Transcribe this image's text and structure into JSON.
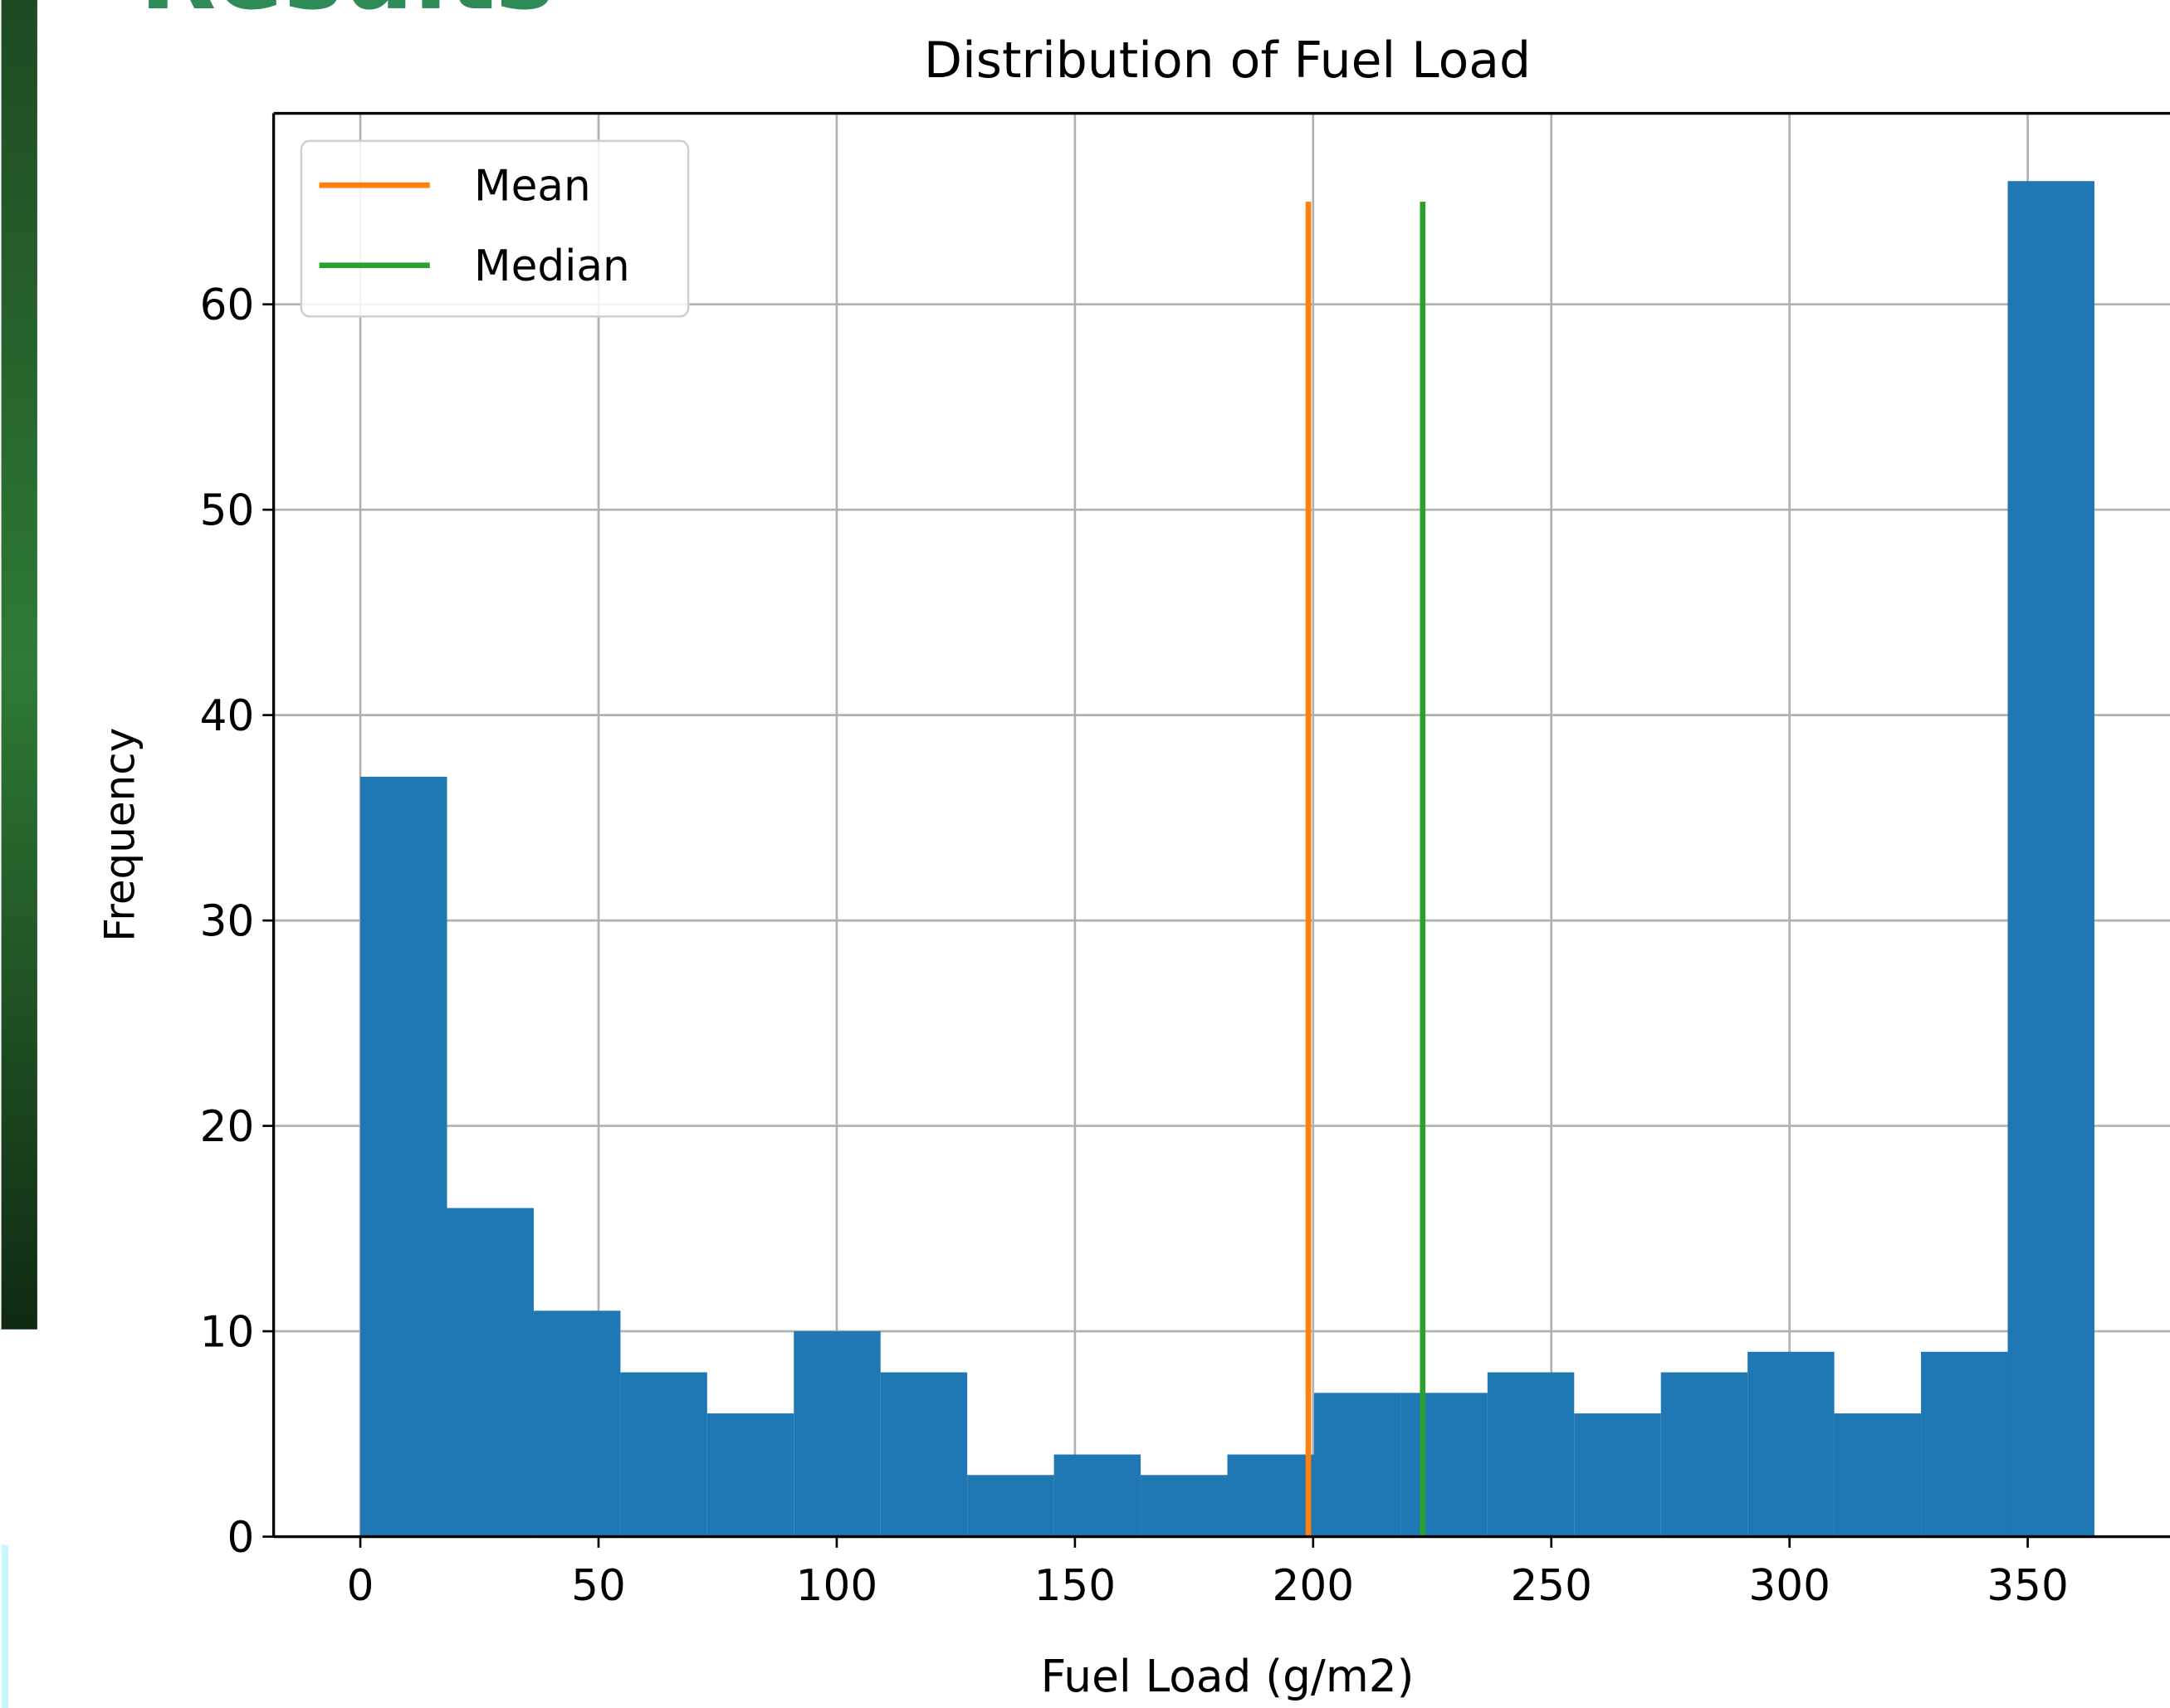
{
  "slide": {
    "title": "Results"
  },
  "chart_data": {
    "type": "histogram",
    "title": "Distribution of Fuel Load",
    "x_label": "Fuel Load (g/m2)",
    "y_label": "Frequency",
    "bins": [
      0,
      18.2,
      36.4,
      54.6,
      72.8,
      91,
      109.2,
      127.4,
      145.6,
      163.8,
      182,
      200.2,
      218.4,
      236.6,
      254.8,
      273,
      291.2,
      309.4,
      327.6,
      345.8,
      364
    ],
    "counts": [
      37,
      16,
      11,
      8,
      6,
      10,
      8,
      3,
      4,
      3,
      4,
      7,
      7,
      8,
      6,
      8,
      9,
      6,
      9,
      66
    ],
    "color": "#1f77b4",
    "lines": [
      {
        "name": "Mean",
        "color": "#ff7f0e",
        "x": 199,
        "y": [
          0,
          65
        ]
      },
      {
        "name": "Median",
        "color": "#2ca02c",
        "x": 223,
        "y": [
          0,
          65
        ]
      }
    ],
    "xlim": [
      -18.2,
      382.2
    ],
    "ylim": [
      0,
      69.3
    ],
    "xticks": [
      0,
      50,
      100,
      150,
      200,
      250,
      300,
      350
    ],
    "yticks": [
      0,
      10,
      20,
      30,
      40,
      50,
      60
    ],
    "grid": true,
    "legend": "upper left"
  }
}
